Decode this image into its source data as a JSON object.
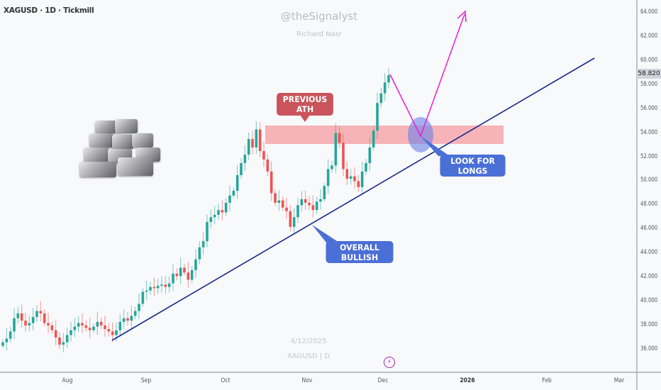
{
  "header": {
    "symbol": "XAGUSD · 1D · Tickmill"
  },
  "watermark": {
    "handle": "@theSignalyst",
    "author": "Richard Nasr",
    "date": "4/12/2025",
    "symbol_tf": "XAGUSD | D"
  },
  "last_price": "58.820",
  "annotations": {
    "previous_ath": "PREVIOUS ATH",
    "overall_bullish": "OVERALL BULLISH",
    "look_for_longs": "LOOK FOR LONGS"
  },
  "colors": {
    "up": "#26a69a",
    "down": "#ef5350",
    "trendline": "#1a2a8a",
    "projection": "#e91ed4",
    "zone": "#f5a3a8",
    "callout_red": "#c9545c",
    "callout_blue": "#4a6fd6",
    "ellipse": "#6b7fe8"
  },
  "icons": {
    "flash": "lightning-icon",
    "image": "silver-bars-image"
  },
  "chart_data": {
    "type": "candlestick",
    "yticks": [
      "64.000",
      "62.000",
      "60.000",
      "58.000",
      "56.000",
      "54.000",
      "52.000",
      "50.000",
      "48.000",
      "46.000",
      "44.000",
      "42.000",
      "40.000",
      "38.000",
      "36.000"
    ],
    "ylim": [
      36,
      64
    ],
    "xticks": [
      "Aug",
      "Sep",
      "Oct",
      "Nov",
      "Dec",
      "2026",
      "Feb",
      "Mar"
    ],
    "closes": [
      36.6,
      36.9,
      37.5,
      38.6,
      39.0,
      38.4,
      38.0,
      38.2,
      38.7,
      39.2,
      39.0,
      38.2,
      38.0,
      37.6,
      37.0,
      36.4,
      36.6,
      37.2,
      37.6,
      37.9,
      38.2,
      38.0,
      37.8,
      37.6,
      37.9,
      38.3,
      38.0,
      37.7,
      37.5,
      37.2,
      37.6,
      38.3,
      38.6,
      38.4,
      38.8,
      39.2,
      39.8,
      40.8,
      40.9,
      41.2,
      41.1,
      41.3,
      41.4,
      41.2,
      41.5,
      42.3,
      42.1,
      42.8,
      42.4,
      41.8,
      42.6,
      43.5,
      44.5,
      45.0,
      46.6,
      47.0,
      47.2,
      47.6,
      47.4,
      48.2,
      48.8,
      49.2,
      50.5,
      51.5,
      52.2,
      53.5,
      52.8,
      54.3,
      52.5,
      51.8,
      50.8,
      49.0,
      48.2,
      48.4,
      47.8,
      47.5,
      46.2,
      47.0,
      48.0,
      48.5,
      48.2,
      48.0,
      47.6,
      48.3,
      48.5,
      49.6,
      51.0,
      51.3,
      54.0,
      53.2,
      51.0,
      50.2,
      50.4,
      50.0,
      49.5,
      50.8,
      51.5,
      52.8,
      54.2,
      56.5,
      57.3,
      58.2,
      58.8
    ],
    "resistance_zone": [
      53.0,
      54.5
    ]
  }
}
